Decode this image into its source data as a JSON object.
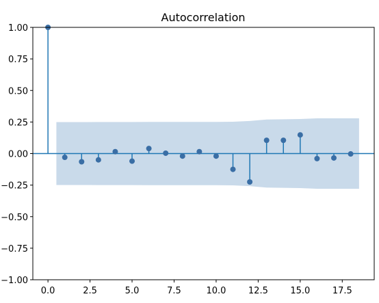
{
  "chart_data": {
    "type": "scatter",
    "subtype": "stem",
    "title": "Autocorrelation",
    "xlabel": "",
    "ylabel": "",
    "xlim": [
      -0.9,
      19.4
    ],
    "ylim": [
      -1.0,
      1.0
    ],
    "x_ticks": [
      0.0,
      2.5,
      5.0,
      7.5,
      10.0,
      12.5,
      15.0,
      17.5
    ],
    "x_tick_labels": [
      "0.0",
      "2.5",
      "5.0",
      "7.5",
      "10.0",
      "12.5",
      "15.0",
      "17.5"
    ],
    "y_ticks": [
      1.0,
      0.75,
      0.5,
      0.25,
      0.0,
      -0.25,
      -0.5,
      -0.75,
      -1.0
    ],
    "y_tick_labels": [
      "1.00",
      "0.75",
      "0.50",
      "0.25",
      "0.00",
      "−0.25",
      "−0.50",
      "−0.75",
      "−1.00"
    ],
    "grid": false,
    "zero_line": true,
    "series": [
      {
        "lags": [
          0,
          1,
          2,
          3,
          4,
          5,
          6,
          7,
          8,
          9,
          10,
          11,
          12,
          13,
          14,
          15,
          16,
          17,
          18
        ],
        "values": [
          1.0,
          -0.03,
          -0.065,
          -0.05,
          0.015,
          -0.06,
          0.04,
          0.003,
          -0.02,
          0.015,
          -0.02,
          -0.125,
          -0.225,
          0.105,
          0.105,
          0.148,
          -0.04,
          -0.035,
          -0.003
        ]
      }
    ],
    "confidence_band": {
      "x": [
        0.5,
        1,
        2,
        3,
        4,
        5,
        6,
        7,
        8,
        9,
        10,
        11,
        12,
        13,
        14,
        15,
        16,
        17,
        18,
        18.5
      ],
      "upper": [
        0.249,
        0.249,
        0.249,
        0.25,
        0.25,
        0.25,
        0.251,
        0.251,
        0.251,
        0.251,
        0.251,
        0.252,
        0.258,
        0.27,
        0.272,
        0.274,
        0.279,
        0.279,
        0.279,
        0.279
      ],
      "lower": [
        -0.249,
        -0.249,
        -0.249,
        -0.25,
        -0.25,
        -0.25,
        -0.251,
        -0.251,
        -0.251,
        -0.251,
        -0.251,
        -0.252,
        -0.258,
        -0.27,
        -0.272,
        -0.274,
        -0.279,
        -0.279,
        -0.279,
        -0.279
      ]
    },
    "colors": {
      "stem": "#1f77b4",
      "marker": "#3a6ea5",
      "band": "#c9daea",
      "zero_line": "#1f77b4"
    }
  }
}
